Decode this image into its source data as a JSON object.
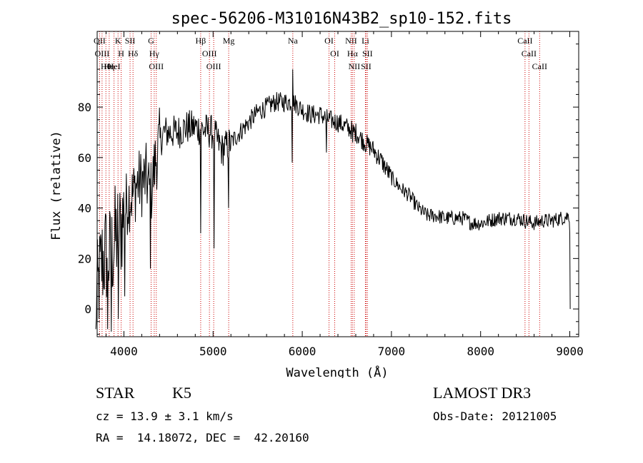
{
  "chart_data": {
    "type": "line",
    "title": "spec-56206-M31016N43B2_sp10-152.fits",
    "xlabel": "Wavelength (Å)",
    "ylabel": "Flux (relative)",
    "xlim": [
      3700,
      9100
    ],
    "ylim": [
      -11,
      110
    ],
    "xticks": [
      4000,
      5000,
      6000,
      7000,
      8000,
      9000
    ],
    "yticks": [
      0,
      20,
      40,
      60,
      80
    ],
    "grid": false,
    "line_color": "#000000",
    "marker_color": "#cc0000",
    "series": [
      {
        "values_x": [
          3700,
          3750,
          3800,
          3850,
          3900,
          3950,
          4000,
          4050,
          4100,
          4150,
          4200,
          4250,
          4300,
          4350,
          4400,
          4450,
          4500,
          4600,
          4700,
          4800,
          4900,
          5000,
          5100,
          5200,
          5300,
          5400,
          5500,
          5600,
          5700,
          5800,
          5900,
          6000,
          6100,
          6200,
          6300,
          6400,
          6500,
          6600,
          6700,
          6800,
          6900,
          7000,
          7100,
          7200,
          7300,
          7400,
          7500,
          7600,
          7700,
          7800,
          7900,
          8000,
          8100,
          8200,
          8300,
          8400,
          8500,
          8600,
          8700,
          8800,
          8900,
          9000
        ],
        "values_y": [
          5,
          18,
          22,
          20,
          28,
          30,
          38,
          44,
          45,
          50,
          50,
          52,
          45,
          58,
          66,
          70,
          70,
          70,
          72,
          72,
          71,
          70,
          63,
          66,
          70,
          74,
          78,
          80,
          82,
          82,
          82,
          79,
          77,
          77,
          75,
          74,
          72,
          70,
          66,
          63,
          58,
          52,
          48,
          45,
          40,
          37,
          37,
          36,
          36,
          36,
          34,
          34,
          35,
          36,
          36,
          36,
          35,
          34,
          35,
          35,
          36,
          37
        ],
        "sharp_features": [
          [
            3680,
            -8
          ],
          [
            3820,
            -8
          ],
          [
            3860,
            -9
          ],
          [
            3940,
            -4
          ],
          [
            4010,
            5
          ],
          [
            4300,
            16
          ],
          [
            4860,
            30
          ],
          [
            5010,
            24
          ],
          [
            5175,
            40
          ],
          [
            5890,
            58
          ],
          [
            5894,
            95
          ],
          [
            6270,
            62
          ],
          [
            6563,
            66
          ]
        ]
      }
    ],
    "line_markers": [
      {
        "label": "Hθ",
        "x": 3798
      },
      {
        "label": "OII",
        "x": 3727
      },
      {
        "label": "OIII",
        "x": 3755
      },
      {
        "label": "Hη",
        "x": 3835
      },
      {
        "label": "HeI",
        "x": 3889
      },
      {
        "label": "K",
        "x": 3934
      },
      {
        "label": "H",
        "x": 3969
      },
      {
        "label": "SII",
        "x": 4069
      },
      {
        "label": "Hδ",
        "x": 4102
      },
      {
        "label": "Hγ",
        "x": 4340
      },
      {
        "label": "G",
        "x": 4305
      },
      {
        "label": "OIII",
        "x": 4363
      },
      {
        "label": "Hβ",
        "x": 4861
      },
      {
        "label": "OIII",
        "x": 4959
      },
      {
        "label": "OIII",
        "x": 5007
      },
      {
        "label": "Mg",
        "x": 5175
      },
      {
        "label": "Na",
        "x": 5894
      },
      {
        "label": "OI",
        "x": 6300
      },
      {
        "label": "OI",
        "x": 6364
      },
      {
        "label": "NII",
        "x": 6548
      },
      {
        "label": "Hα",
        "x": 6563
      },
      {
        "label": "NII",
        "x": 6583
      },
      {
        "label": "Li",
        "x": 6708
      },
      {
        "label": "SII",
        "x": 6716
      },
      {
        "label": "SII",
        "x": 6731
      },
      {
        "label": "CaII",
        "x": 8498
      },
      {
        "label": "CaII",
        "x": 8542
      },
      {
        "label": "CaII",
        "x": 8662
      }
    ]
  },
  "info": {
    "class_label": "STAR",
    "subclass": "K5",
    "cz": "cz = 13.9 ± 3.1 km/s",
    "coords": "RA =  14.18072, DEC =  42.20160",
    "survey": "LAMOST DR3",
    "obs_date": "Obs-Date: 20121005"
  }
}
